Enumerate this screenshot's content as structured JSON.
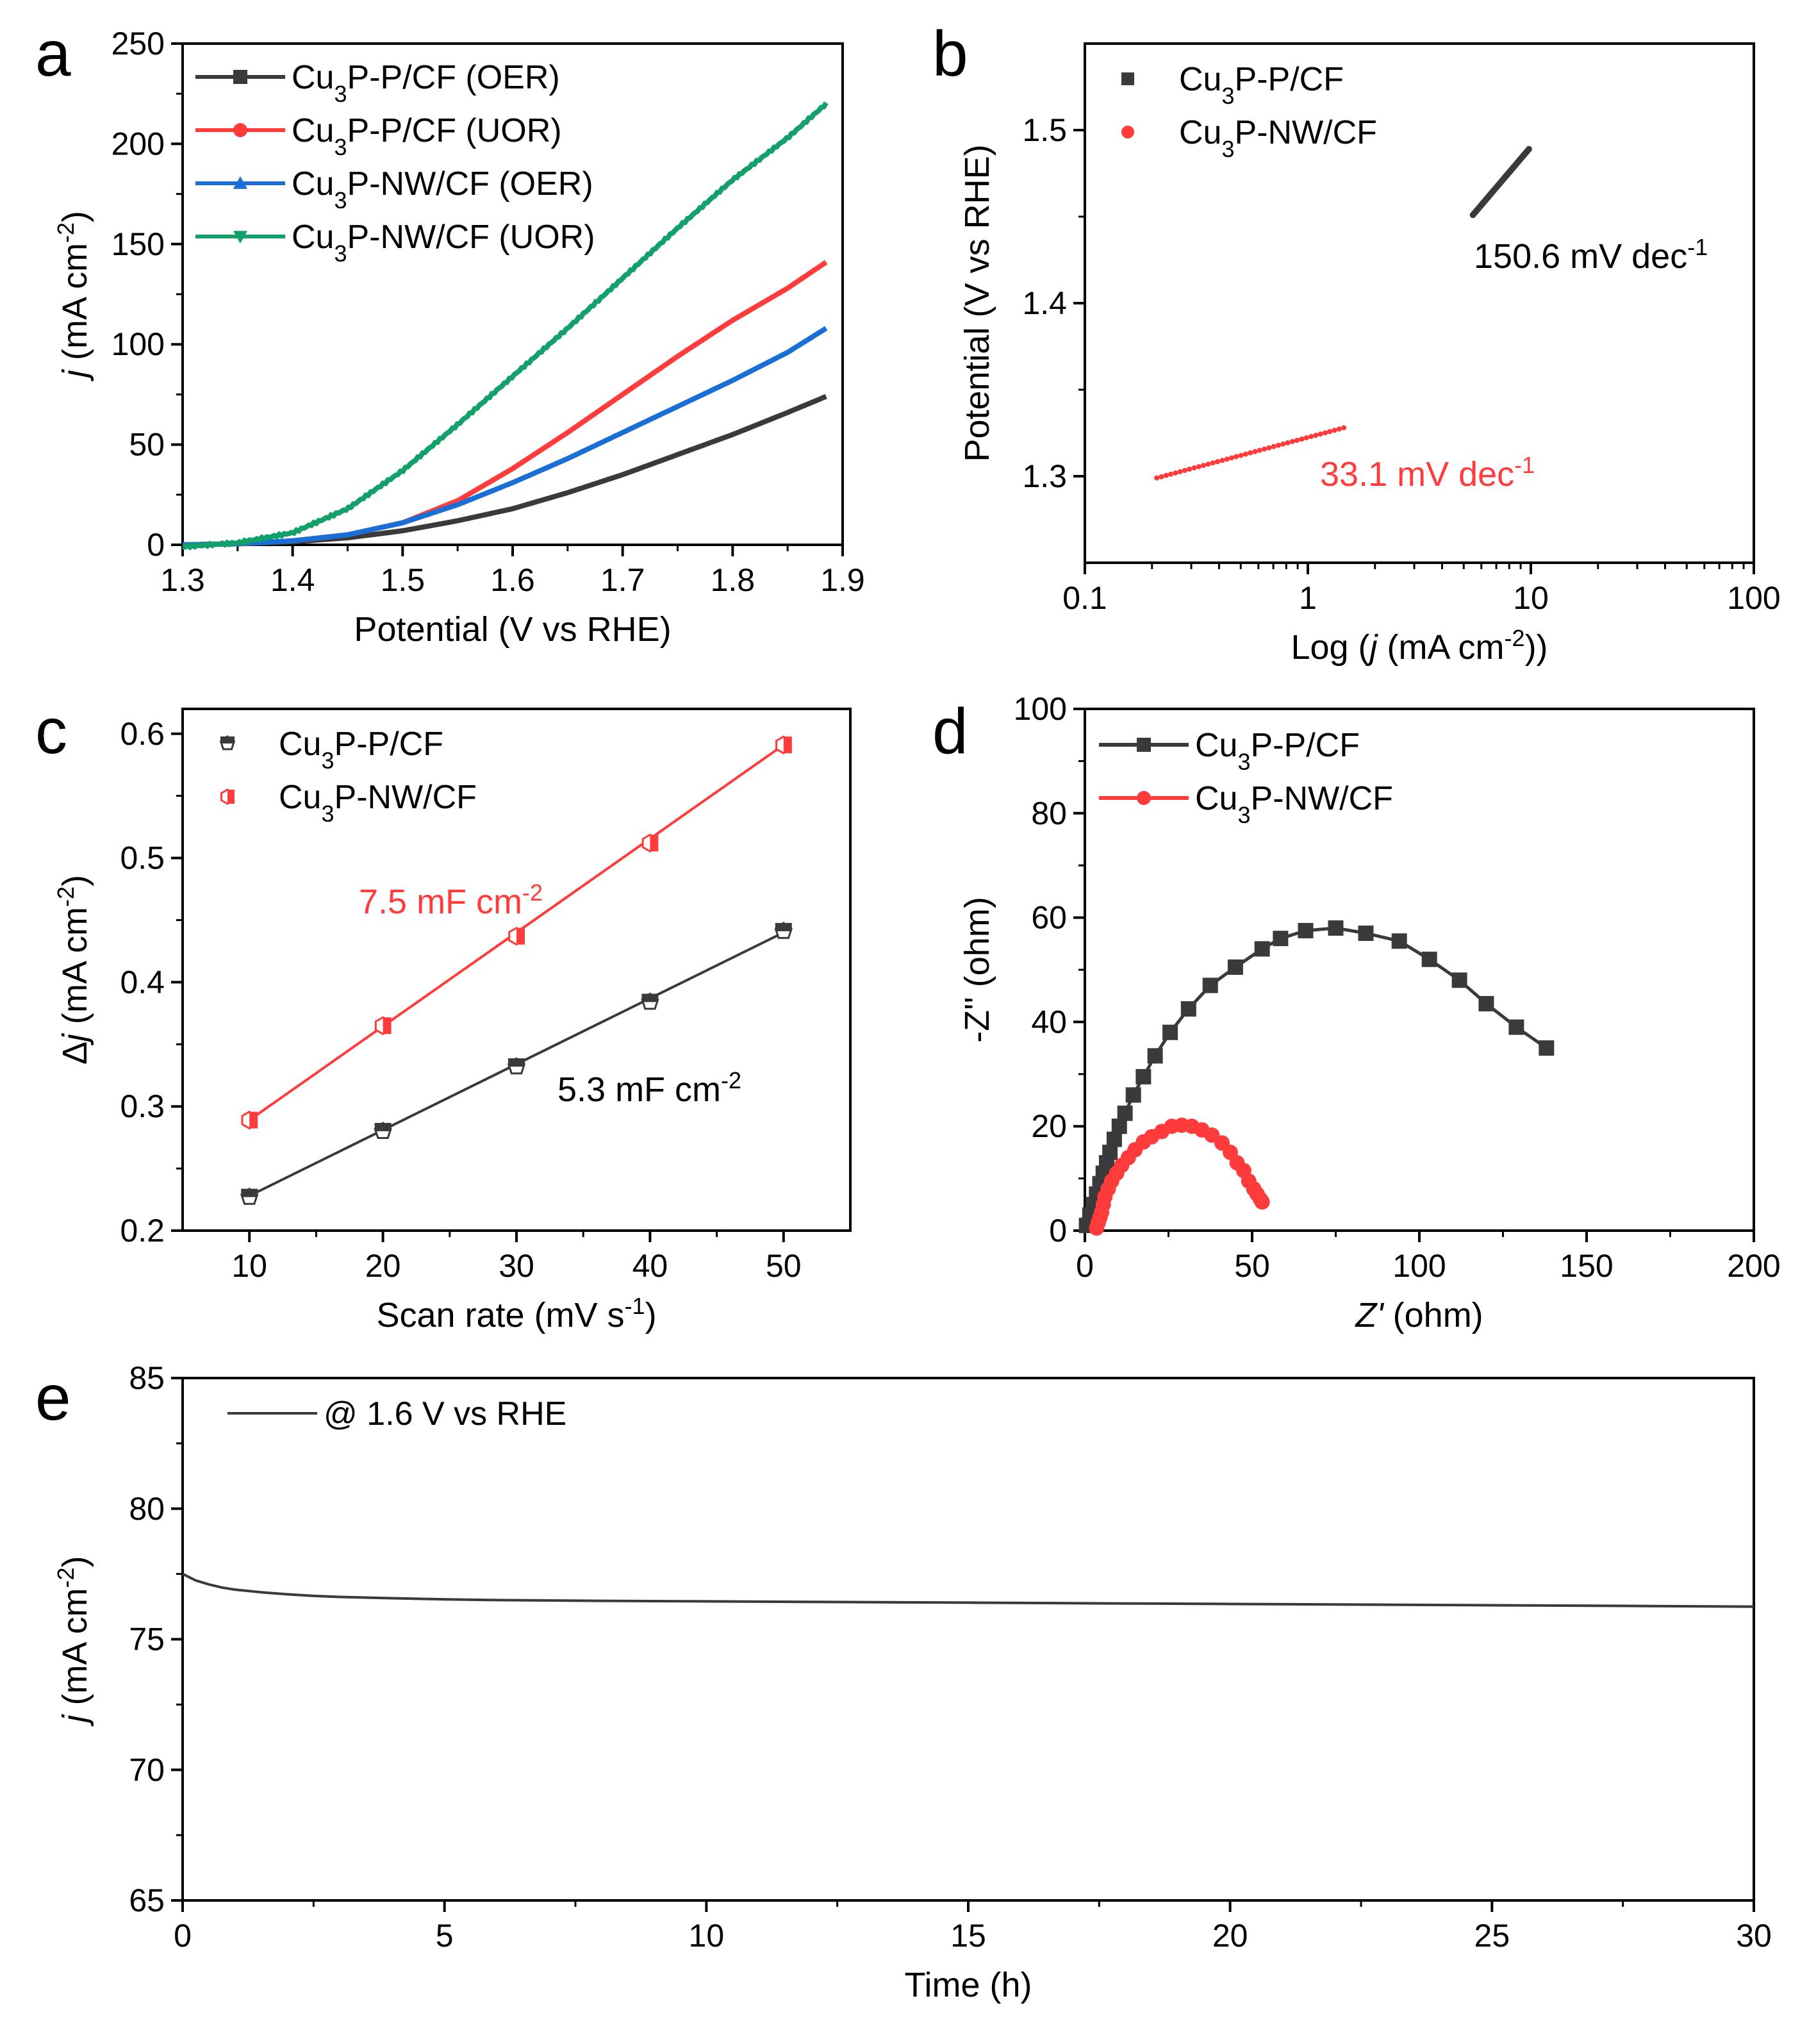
{
  "colors": {
    "black": "#3a3a3a",
    "red": "#ff3b3b",
    "blue": "#1a6fd6",
    "green": "#14a06a",
    "axis": "#000000"
  },
  "chart_data": [
    {
      "id": "a",
      "panel_letter": "a",
      "type": "line",
      "title": "",
      "xlabel": "Potential (V vs RHE)",
      "ylabel_italic": "j",
      "ylabel_rest": " (mA cm",
      "ylabel_sup": "-2",
      "ylabel_close": ")",
      "xlim": [
        1.3,
        1.9
      ],
      "ylim": [
        0,
        250
      ],
      "xticks": [
        1.3,
        1.4,
        1.5,
        1.6,
        1.7,
        1.8,
        1.9
      ],
      "xtick_labels": [
        "1.3",
        "1.4",
        "1.5",
        "1.6",
        "1.7",
        "1.8",
        "1.9"
      ],
      "yticks": [
        0,
        50,
        100,
        150,
        200,
        250
      ],
      "ytick_labels": [
        "0",
        "50",
        "100",
        "150",
        "200",
        "250"
      ],
      "legend_position": "top-left",
      "series": [
        {
          "name": "Cu3P-P/CF (OER)",
          "label_parts": [
            "Cu",
            "3",
            "P-P/CF (OER)"
          ],
          "color": "black",
          "marker": "square",
          "x": [
            1.3,
            1.35,
            1.4,
            1.45,
            1.5,
            1.55,
            1.6,
            1.65,
            1.7,
            1.75,
            1.8,
            1.85,
            1.885
          ],
          "y": [
            0,
            0.5,
            1.5,
            3.5,
            7,
            12,
            18,
            26,
            35,
            45,
            55,
            66,
            74
          ]
        },
        {
          "name": "Cu3P-P/CF (UOR)",
          "label_parts": [
            "Cu",
            "3",
            "P-P/CF (UOR)"
          ],
          "color": "red",
          "marker": "circle",
          "x": [
            1.3,
            1.35,
            1.4,
            1.45,
            1.5,
            1.55,
            1.6,
            1.65,
            1.7,
            1.75,
            1.8,
            1.85,
            1.885
          ],
          "y": [
            0,
            0.5,
            2,
            5,
            11,
            22,
            38,
            56,
            75,
            94,
            112,
            128,
            141
          ]
        },
        {
          "name": "Cu3P-NW/CF (OER)",
          "label_parts": [
            "Cu",
            "3",
            "P-NW/CF (OER)"
          ],
          "color": "blue",
          "marker": "triangle-up",
          "x": [
            1.3,
            1.35,
            1.4,
            1.45,
            1.5,
            1.55,
            1.6,
            1.65,
            1.7,
            1.75,
            1.8,
            1.85,
            1.885
          ],
          "y": [
            0,
            0.5,
            2,
            5,
            11,
            20,
            31,
            43,
            56,
            69,
            82,
            96,
            108
          ]
        },
        {
          "name": "Cu3P-NW/CF (UOR)",
          "label_parts": [
            "Cu",
            "3",
            "P-NW/CF (UOR)"
          ],
          "color": "green",
          "marker": "triangle-down",
          "x": [
            1.3,
            1.35,
            1.4,
            1.45,
            1.5,
            1.55,
            1.6,
            1.65,
            1.7,
            1.75,
            1.8,
            1.85,
            1.885
          ],
          "y": [
            -1,
            1,
            6,
            18,
            37,
            60,
            84,
            108,
            133,
            158,
            182,
            203,
            220
          ]
        }
      ]
    },
    {
      "id": "b",
      "panel_letter": "b",
      "type": "scatter",
      "title": "",
      "xscale": "log",
      "xlabel_pre": "Log (",
      "xlabel_italic": "j",
      "xlabel_mid": " (mA cm",
      "xlabel_sup": "-2",
      "xlabel_close": "))",
      "ylabel": "Potential (V vs RHE)",
      "xlim": [
        0.1,
        100
      ],
      "ylim": [
        1.25,
        1.55
      ],
      "xticks": [
        0.1,
        1,
        10,
        100
      ],
      "xtick_labels": [
        "0.1",
        "1",
        "10",
        "100"
      ],
      "yticks": [
        1.3,
        1.4,
        1.5
      ],
      "ytick_labels": [
        "1.3",
        "1.4",
        "1.5"
      ],
      "legend_position": "top-left",
      "series": [
        {
          "name": "Cu3P-P/CF",
          "label_parts": [
            "Cu",
            "3",
            "P-P/CF"
          ],
          "color": "black",
          "marker": "square",
          "x_range": [
            5.5,
            9.8
          ],
          "y_range": [
            1.451,
            1.489
          ],
          "fit_label": "150.6 mV dec",
          "fit_sup": "-1"
        },
        {
          "name": "Cu3P-NW/CF",
          "label_parts": [
            "Cu",
            "3",
            "P-NW/CF"
          ],
          "color": "red",
          "marker": "circle",
          "x_range": [
            0.21,
            1.45
          ],
          "y_range": [
            1.299,
            1.328
          ],
          "fit_label": "33.1 mV dec",
          "fit_sup": "-1"
        }
      ]
    },
    {
      "id": "c",
      "panel_letter": "c",
      "type": "scatter",
      "title": "",
      "xlabel": "Scan rate (mV s",
      "xlabel_sup": "-1",
      "xlabel_close": ")",
      "ylabel_pre": "Δ",
      "ylabel_italic": "j",
      "ylabel_rest": " (mA cm",
      "ylabel_sup": "-2",
      "ylabel_close": ")",
      "xlim": [
        5,
        55
      ],
      "ylim": [
        0.2,
        0.62
      ],
      "xticks": [
        10,
        20,
        30,
        40,
        50
      ],
      "xtick_labels": [
        "10",
        "20",
        "30",
        "40",
        "50"
      ],
      "yticks": [
        0.2,
        0.3,
        0.4,
        0.5,
        0.6
      ],
      "ytick_labels": [
        "0.2",
        "0.3",
        "0.4",
        "0.5",
        "0.6"
      ],
      "legend_position": "top-left",
      "series": [
        {
          "name": "Cu3P-P/CF",
          "label_parts": [
            "Cu",
            "3",
            "P-P/CF"
          ],
          "color": "black",
          "marker": "pentagon-half",
          "x": [
            10,
            20,
            30,
            40,
            50
          ],
          "y": [
            0.227,
            0.28,
            0.332,
            0.384,
            0.441
          ],
          "fit": [
            [
              10,
              0.228
            ],
            [
              50,
              0.44
            ]
          ],
          "fit_label": "5.3 mF cm",
          "fit_sup": "-2"
        },
        {
          "name": "Cu3P-NW/CF",
          "label_parts": [
            "Cu",
            "3",
            "P-NW/CF"
          ],
          "color": "red",
          "marker": "hexagon-half",
          "x": [
            10,
            20,
            30,
            40,
            50
          ],
          "y": [
            0.289,
            0.365,
            0.437,
            0.512,
            0.591
          ],
          "fit": [
            [
              10,
              0.289
            ],
            [
              50,
              0.591
            ]
          ],
          "fit_label": "7.5 mF cm",
          "fit_sup": "-2"
        }
      ]
    },
    {
      "id": "d",
      "panel_letter": "d",
      "type": "scatter",
      "title": "",
      "xlabel_italic": "Z'",
      "xlabel_rest": " (ohm)",
      "ylabel": "-Z'' (ohm)",
      "xlim": [
        0,
        200
      ],
      "ylim": [
        0,
        100
      ],
      "xticks": [
        0,
        50,
        100,
        150,
        200
      ],
      "xtick_labels": [
        "0",
        "50",
        "100",
        "150",
        "200"
      ],
      "yticks": [
        0,
        20,
        40,
        60,
        80,
        100
      ],
      "ytick_labels": [
        "0",
        "20",
        "40",
        "60",
        "80",
        "100"
      ],
      "legend_position": "top-left",
      "series": [
        {
          "name": "Cu3P-P/CF",
          "label_parts": [
            "Cu",
            "3",
            "P-P/CF"
          ],
          "color": "black",
          "marker": "square",
          "x": [
            0.5,
            1.5,
            2.5,
            3.5,
            4.5,
            5.5,
            6.5,
            7.5,
            8.8,
            10.3,
            12,
            14.5,
            17.5,
            21,
            25.5,
            31,
            37.5,
            45,
            53,
            58.5,
            66,
            75,
            84,
            94,
            103,
            112,
            120,
            129,
            138
          ],
          "y": [
            1,
            3,
            5,
            7,
            9,
            11,
            13,
            15,
            17.5,
            20,
            22.5,
            26,
            29.5,
            33.5,
            38,
            42.5,
            47,
            50.5,
            54,
            56,
            57.5,
            58,
            57,
            55.5,
            52,
            48,
            43.5,
            39,
            35
          ]
        },
        {
          "name": "Cu3P-NW/CF",
          "label_parts": [
            "Cu",
            "3",
            "P-NW/CF"
          ],
          "color": "red",
          "marker": "circle",
          "x": [
            3.5,
            4,
            4.5,
            5,
            5.5,
            6,
            7,
            8,
            9.5,
            11,
            13,
            15,
            17.5,
            20,
            23,
            26,
            29,
            32,
            35,
            38,
            41,
            43.5,
            45.5,
            47.5,
            49,
            50.5,
            51.5,
            52.5,
            53
          ],
          "y": [
            0.5,
            1.5,
            2.5,
            3.5,
            5,
            6.5,
            8,
            9.5,
            11,
            12.5,
            14,
            15.5,
            17,
            18,
            19,
            20,
            20.2,
            20,
            19.3,
            18.3,
            16.8,
            15,
            13,
            11.5,
            9.5,
            8,
            7,
            6,
            5.5
          ]
        }
      ]
    },
    {
      "id": "e",
      "panel_letter": "e",
      "type": "line",
      "title": "",
      "xlabel": "Time (h)",
      "ylabel_italic": "j",
      "ylabel_rest": " (mA cm",
      "ylabel_sup": "-2",
      "ylabel_close": ")",
      "xlim": [
        0,
        30
      ],
      "ylim": [
        65,
        85
      ],
      "xticks": [
        0,
        5,
        10,
        15,
        20,
        25,
        30
      ],
      "xtick_labels": [
        "0",
        "5",
        "10",
        "15",
        "20",
        "25",
        "30"
      ],
      "yticks": [
        65,
        70,
        75,
        80,
        85
      ],
      "ytick_labels": [
        "65",
        "70",
        "75",
        "80",
        "85"
      ],
      "legend_position": "top-left",
      "series": [
        {
          "name": "@ 1.6 V vs RHE",
          "color": "black",
          "x": [
            0,
            0.1,
            0.25,
            0.5,
            0.75,
            1,
            1.5,
            2,
            2.5,
            3,
            4,
            5,
            6,
            8,
            10,
            12,
            15,
            18,
            20,
            22,
            25,
            28,
            30
          ],
          "y": [
            77.5,
            77.4,
            77.25,
            77.1,
            76.98,
            76.9,
            76.8,
            76.72,
            76.66,
            76.62,
            76.57,
            76.53,
            76.5,
            76.47,
            76.45,
            76.43,
            76.4,
            76.37,
            76.35,
            76.33,
            76.3,
            76.27,
            76.25
          ]
        }
      ]
    }
  ]
}
